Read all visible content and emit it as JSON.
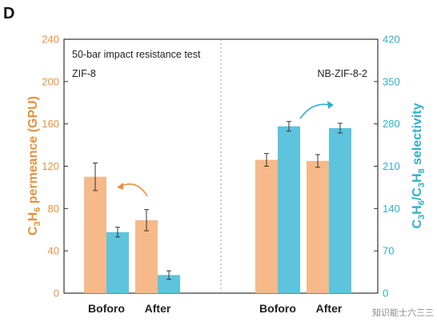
{
  "panel_label": "D",
  "watermark": "知识能士六三三",
  "colors": {
    "permeance": "#F6B98A",
    "selectivity": "#5EC3DD",
    "left_axis": "#E8913E",
    "right_axis": "#2FAFCC",
    "arrow": "#E8913E",
    "arrow_right": "#2FAFCC",
    "text": "#222222"
  },
  "chart_data": {
    "type": "bar",
    "title": "50-bar impact resistance test",
    "groups": [
      {
        "name": "ZIF-8",
        "categories": [
          "Boforo",
          "After"
        ]
      },
      {
        "name": "NB-ZIF-8-2",
        "categories": [
          "Boforo",
          "After"
        ]
      }
    ],
    "categories": [
      "Boforo",
      "After",
      "Boforo",
      "After"
    ],
    "ylabel_left": "C3H6 permeance (GPU)",
    "ylabel_right": "C3H6/C3H8 selectivity",
    "ylim_left": [
      0,
      240
    ],
    "ylim_right": [
      0,
      420
    ],
    "yticks_left": [
      0,
      40,
      80,
      120,
      160,
      200,
      240
    ],
    "yticks_right": [
      0,
      70,
      140,
      210,
      280,
      350,
      420
    ],
    "series": [
      {
        "name": "C3H6 permeance",
        "axis": "left",
        "values": [
          110,
          69,
          126,
          125
        ],
        "errors": [
          13,
          10,
          6,
          6
        ]
      },
      {
        "name": "C3H6/C3H8 selectivity",
        "axis": "right",
        "values": [
          101,
          30,
          276,
          273
        ],
        "errors": [
          8,
          7,
          8,
          8
        ]
      }
    ],
    "grid": false,
    "divider": "dotted vertical line between groups"
  }
}
